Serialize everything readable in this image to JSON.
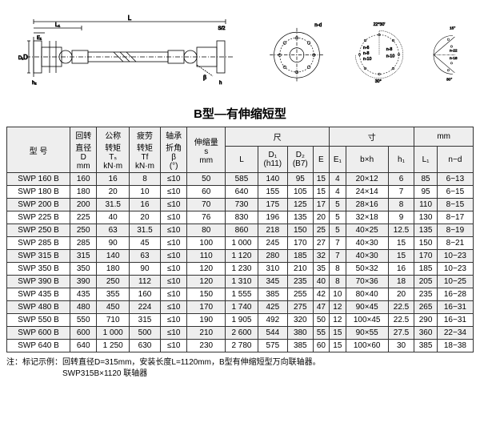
{
  "title": "B型—有伸缩短型",
  "diagram_labels": {
    "L": "L",
    "L1": "L₁",
    "E1": "E₁",
    "S2": "S/2",
    "D": "D",
    "D1": "D₁",
    "D2": "D₂",
    "h2": "h₂",
    "h": "h",
    "beta": "β",
    "nd": "n-d",
    "angles": [
      "22°30'",
      "15°",
      "30°",
      "30°"
    ],
    "bolt_n": [
      "n-6",
      "n-8",
      "n-10",
      "n-8",
      "n-10",
      "n-22",
      "n-18"
    ]
  },
  "header": {
    "model": "型 号",
    "D_label": "回转\n直径\nD\nmm",
    "Ts_label": "公称\n转矩\nTₛ\nkN·m",
    "Tf_label": "疲劳\n转矩\nTf\nkN·m",
    "beta_label": "轴承\n折角\nβ\n(°)",
    "s_label": "伸缩量\ns\nmm",
    "dim_group": "尺",
    "dim_group2": "寸",
    "mm": "mm",
    "L": "L",
    "D1": "D₁\n(h11)",
    "D2": "D₂\n(B7)",
    "E": "E",
    "E1": "E₁",
    "bh": "b×h",
    "h1": "h₁",
    "L1": "L₁",
    "nd": "n−d"
  },
  "rows": [
    {
      "model": "SWP 160 B",
      "D": 160,
      "Ts": "16",
      "Tf": "8",
      "beta": "≤10",
      "s": 50,
      "L": 585,
      "D1": 140,
      "D2": 95,
      "E": 15,
      "E1": 4,
      "bh": "20×12",
      "h1": "6",
      "L1": 85,
      "nd": "6−13"
    },
    {
      "model": "SWP 180 B",
      "D": 180,
      "Ts": "20",
      "Tf": "10",
      "beta": "≤10",
      "s": 60,
      "L": 640,
      "D1": 155,
      "D2": 105,
      "E": 15,
      "E1": 4,
      "bh": "24×14",
      "h1": "7",
      "L1": 95,
      "nd": "6−15"
    },
    {
      "model": "SWP 200 B",
      "D": 200,
      "Ts": "31.5",
      "Tf": "16",
      "beta": "≤10",
      "s": 70,
      "L": 730,
      "D1": 175,
      "D2": 125,
      "E": 17,
      "E1": 5,
      "bh": "28×16",
      "h1": "8",
      "L1": 110,
      "nd": "8−15"
    },
    {
      "model": "SWP 225 B",
      "D": 225,
      "Ts": "40",
      "Tf": "20",
      "beta": "≤10",
      "s": 76,
      "L": 830,
      "D1": 196,
      "D2": 135,
      "E": 20,
      "E1": 5,
      "bh": "32×18",
      "h1": "9",
      "L1": 130,
      "nd": "8−17"
    },
    {
      "model": "SWP 250 B",
      "D": 250,
      "Ts": "63",
      "Tf": "31.5",
      "beta": "≤10",
      "s": 80,
      "L": 860,
      "D1": 218,
      "D2": 150,
      "E": 25,
      "E1": 5,
      "bh": "40×25",
      "h1": "12.5",
      "L1": 135,
      "nd": "8−19"
    },
    {
      "model": "SWP 285 B",
      "D": 285,
      "Ts": "90",
      "Tf": "45",
      "beta": "≤10",
      "s": 100,
      "L": "1 000",
      "D1": 245,
      "D2": 170,
      "E": 27,
      "E1": 7,
      "bh": "40×30",
      "h1": "15",
      "L1": 150,
      "nd": "8−21"
    },
    {
      "model": "SWP 315 B",
      "D": 315,
      "Ts": "140",
      "Tf": "63",
      "beta": "≤10",
      "s": 110,
      "L": "1 120",
      "D1": 280,
      "D2": 185,
      "E": 32,
      "E1": 7,
      "bh": "40×30",
      "h1": "15",
      "L1": 170,
      "nd": "10−23"
    },
    {
      "model": "SWP 350 B",
      "D": 350,
      "Ts": "180",
      "Tf": "90",
      "beta": "≤10",
      "s": 120,
      "L": "1 230",
      "D1": 310,
      "D2": 210,
      "E": 35,
      "E1": 8,
      "bh": "50×32",
      "h1": "16",
      "L1": 185,
      "nd": "10−23"
    },
    {
      "model": "SWP 390 B",
      "D": 390,
      "Ts": "250",
      "Tf": "112",
      "beta": "≤10",
      "s": 120,
      "L": "1 310",
      "D1": 345,
      "D2": 235,
      "E": 40,
      "E1": 8,
      "bh": "70×36",
      "h1": "18",
      "L1": 205,
      "nd": "10−25"
    },
    {
      "model": "SWP 435 B",
      "D": 435,
      "Ts": "355",
      "Tf": "160",
      "beta": "≤10",
      "s": 150,
      "L": "1 555",
      "D1": 385,
      "D2": 255,
      "E": 42,
      "E1": 10,
      "bh": "80×40",
      "h1": "20",
      "L1": 235,
      "nd": "16−28"
    },
    {
      "model": "SWP 480 B",
      "D": 480,
      "Ts": "450",
      "Tf": "224",
      "beta": "≤10",
      "s": 170,
      "L": "1 740",
      "D1": 425,
      "D2": 275,
      "E": 47,
      "E1": 12,
      "bh": "90×45",
      "h1": "22.5",
      "L1": 265,
      "nd": "16−31"
    },
    {
      "model": "SWP 550 B",
      "D": 550,
      "Ts": "710",
      "Tf": "315",
      "beta": "≤10",
      "s": 190,
      "L": "1 905",
      "D1": 492,
      "D2": 320,
      "E": 50,
      "E1": 12,
      "bh": "100×45",
      "h1": "22.5",
      "L1": 290,
      "nd": "16−31"
    },
    {
      "model": "SWP 600 B",
      "D": 600,
      "Ts": "1 000",
      "Tf": "500",
      "beta": "≤10",
      "s": 210,
      "L": "2 600",
      "D1": 544,
      "D2": 380,
      "E": 55,
      "E1": 15,
      "bh": "90×55",
      "h1": "27.5",
      "L1": 360,
      "nd": "22−34"
    },
    {
      "model": "SWP 640 B",
      "D": 640,
      "Ts": "1 250",
      "Tf": "630",
      "beta": "≤10",
      "s": 230,
      "L": "2 780",
      "D1": 575,
      "D2": 385,
      "E": 60,
      "E1": 15,
      "bh": "100×60",
      "h1": "30",
      "L1": 385,
      "nd": "18−38"
    }
  ],
  "note": {
    "l1": "注：标记示例：回转直径D=315mm，安装长度L=1120mm，B型有伸缩短型万向联轴器。",
    "l2": "SWP315B×1120 联轴器"
  },
  "style": {
    "header_bg": "#eeeeee",
    "row_odd_bg": "#eeeeee",
    "row_even_bg": "#ffffff",
    "border_color": "#333333",
    "title_fontsize": 15,
    "body_fontsize": 10
  }
}
